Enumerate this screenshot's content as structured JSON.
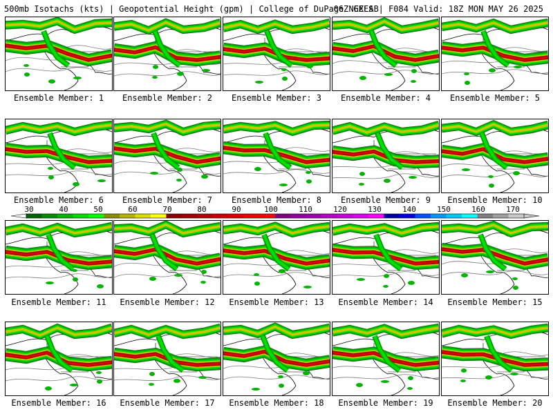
{
  "header": {
    "left": "500mb Isotachs (kts) | Geopotential Height (gpm) | College of DuPage NEXLAB",
    "right": "06Z GEFS | F084 Valid: 18Z MON MAY 26 2025"
  },
  "legend": {
    "labels": [
      "30",
      "40",
      "50",
      "60",
      "70",
      "80",
      "90",
      "100",
      "110",
      "120",
      "130",
      "140",
      "150",
      "160",
      "170"
    ],
    "colors": [
      "#006400",
      "#008c00",
      "#00b400",
      "#00dc00",
      "#00ff00",
      "#8c8c00",
      "#b4b400",
      "#dcdc00",
      "#ffff00",
      "#8c0000",
      "#a00000",
      "#b40000",
      "#c80000",
      "#dc0000",
      "#f00000",
      "#ff0000",
      "#800080",
      "#9000a0",
      "#a000b4",
      "#b400c8",
      "#c800dc",
      "#dc00f0",
      "#ff00ff",
      "#0000a0",
      "#0000dc",
      "#0050ff",
      "#0096ff",
      "#00c8ff",
      "#00ffff",
      "#808080",
      "#a0a0a0",
      "#c8c8c8"
    ]
  },
  "members": [
    {
      "caption": "Ensemble Member: 1"
    },
    {
      "caption": "Ensemble Member: 2"
    },
    {
      "caption": "Ensemble Member: 3"
    },
    {
      "caption": "Ensemble Member: 4"
    },
    {
      "caption": "Ensemble Member: 5"
    },
    {
      "caption": "Ensemble Member: 6"
    },
    {
      "caption": "Ensemble Member: 7"
    },
    {
      "caption": "Ensemble Member: 8"
    },
    {
      "caption": "Ensemble Member: 9"
    },
    {
      "caption": "Ensemble Member: 10"
    },
    {
      "caption": "Ensemble Member: 11"
    },
    {
      "caption": "Ensemble Member: 12"
    },
    {
      "caption": "Ensemble Member: 13"
    },
    {
      "caption": "Ensemble Member: 14"
    },
    {
      "caption": "Ensemble Member: 15"
    },
    {
      "caption": "Ensemble Member: 16"
    },
    {
      "caption": "Ensemble Member: 17"
    },
    {
      "caption": "Ensemble Member: 18"
    },
    {
      "caption": "Ensemble Member: 19"
    },
    {
      "caption": "Ensemble Member: 20"
    }
  ]
}
